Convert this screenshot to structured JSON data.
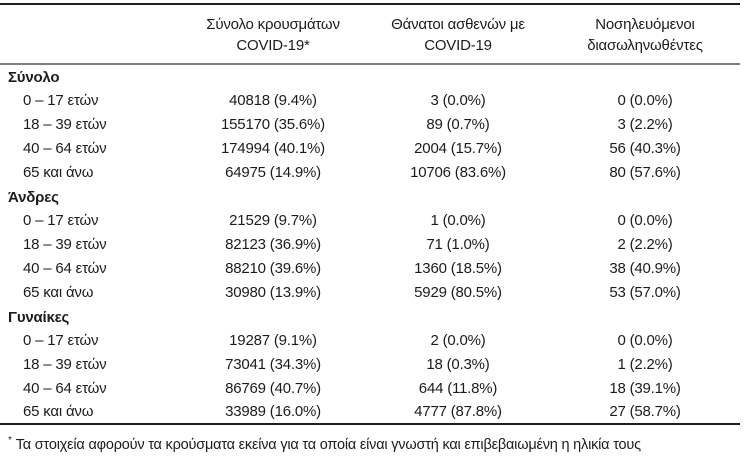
{
  "colors": {
    "text": "#1c1c1c",
    "rule_dark": "#1f1f1f",
    "rule_gray": "#7f7f7f",
    "background": "#ffffff"
  },
  "table": {
    "columns": [
      {
        "line1": "Σύνολο κρουσμάτων",
        "line2": "COVID-19*"
      },
      {
        "line1": "Θάνατοι ασθενών με",
        "line2": "COVID-19"
      },
      {
        "line1": "Νοσηλευόμενοι",
        "line2": "διασωληνωθέντες"
      }
    ],
    "sections": [
      {
        "title": "Σύνολο",
        "rows": [
          {
            "label": "0 – 17 ετών",
            "cases": "40818 (9.4%)",
            "deaths": "3 (0.0%)",
            "intubated": "0 (0.0%)"
          },
          {
            "label": "18 – 39 ετών",
            "cases": "155170 (35.6%)",
            "deaths": "89 (0.7%)",
            "intubated": "3 (2.2%)"
          },
          {
            "label": "40 – 64 ετών",
            "cases": "174994 (40.1%)",
            "deaths": "2004 (15.7%)",
            "intubated": "56 (40.3%)"
          },
          {
            "label": "65 και άνω",
            "cases": "64975 (14.9%)",
            "deaths": "10706 (83.6%)",
            "intubated": "80 (57.6%)"
          }
        ]
      },
      {
        "title": "Άνδρες",
        "rows": [
          {
            "label": "0 – 17 ετών",
            "cases": "21529 (9.7%)",
            "deaths": "1 (0.0%)",
            "intubated": "0 (0.0%)"
          },
          {
            "label": "18 – 39 ετών",
            "cases": "82123 (36.9%)",
            "deaths": "71 (1.0%)",
            "intubated": "2 (2.2%)"
          },
          {
            "label": "40 – 64 ετών",
            "cases": "88210 (39.6%)",
            "deaths": "1360 (18.5%)",
            "intubated": "38 (40.9%)"
          },
          {
            "label": "65 και άνω",
            "cases": "30980 (13.9%)",
            "deaths": "5929 (80.5%)",
            "intubated": "53 (57.0%)"
          }
        ]
      },
      {
        "title": "Γυναίκες",
        "rows": [
          {
            "label": "0 – 17 ετών",
            "cases": "19287 (9.1%)",
            "deaths": "2 (0.0%)",
            "intubated": "0 (0.0%)"
          },
          {
            "label": "18 – 39 ετών",
            "cases": "73041 (34.3%)",
            "deaths": "18 (0.3%)",
            "intubated": "1 (2.2%)"
          },
          {
            "label": "40 – 64 ετών",
            "cases": "86769 (40.7%)",
            "deaths": "644 (11.8%)",
            "intubated": "18 (39.1%)"
          },
          {
            "label": "65 και άνω",
            "cases": "33989 (16.0%)",
            "deaths": "4777 (87.8%)",
            "intubated": "27 (58.7%)"
          }
        ]
      }
    ],
    "footnote": {
      "marker": "*",
      "text": "Τα στοιχεία αφορούν τα κρούσματα εκείνα για τα οποία είναι γνωστή και επιβεβαιωμένη η ηλικία τους"
    }
  }
}
